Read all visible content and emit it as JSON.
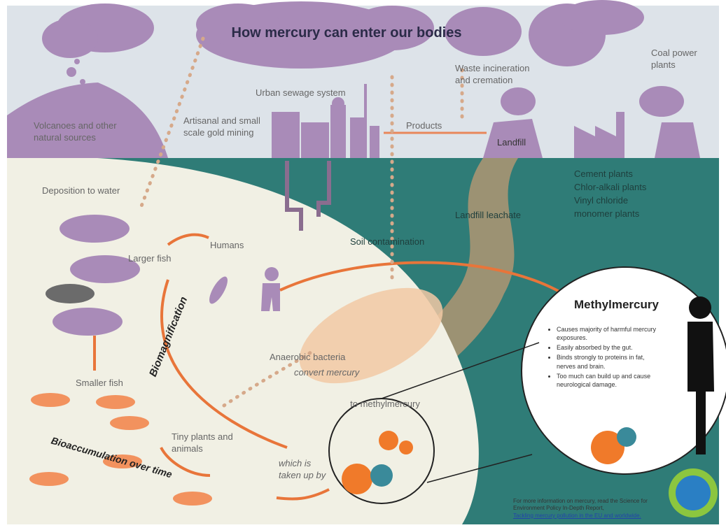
{
  "title": "How mercury can enter our bodies",
  "sources": {
    "volcanoes": "Volcanoes and other natural sources",
    "mining": "Artisanal and small scale gold mining",
    "sewage": "Urban sewage system",
    "products": "Products",
    "waste": "Waste incineration and cremation",
    "landfill": "Landfill",
    "coal": "Coal power plants",
    "industry": [
      "Cement plants",
      "Chlor-alkali plants",
      "Vinyl chloride monomer plants"
    ],
    "leachate": "Landfill leachate",
    "soil": "Soil contamination"
  },
  "food_chain": {
    "deposition": "Deposition to water",
    "larger_fish": "Larger fish",
    "humans": "Humans",
    "biomagnification": "Biomagnification",
    "smaller_fish": "Smaller fish",
    "tiny": "Tiny plants and animals",
    "bioaccumulation": "Bioaccumulation over time",
    "bacteria": "Anaerobic bacteria",
    "convert": "convert mercury",
    "to_methyl": "to methylmercury",
    "taken_up": "which is taken up by"
  },
  "panel": {
    "title": "Methylmercury",
    "bullets": [
      "Causes majority of harmful mercury exposures.",
      "Easily absorbed by the gut.",
      "Binds strongly to proteins in fat, nerves and brain.",
      "Too much can build up and cause neurological damage."
    ]
  },
  "footer": {
    "text": "For more information on mercury, read the Science for Environment Policy In-Depth Report,",
    "link": "Tackling mercury pollution in the EU and worldwide."
  }
}
